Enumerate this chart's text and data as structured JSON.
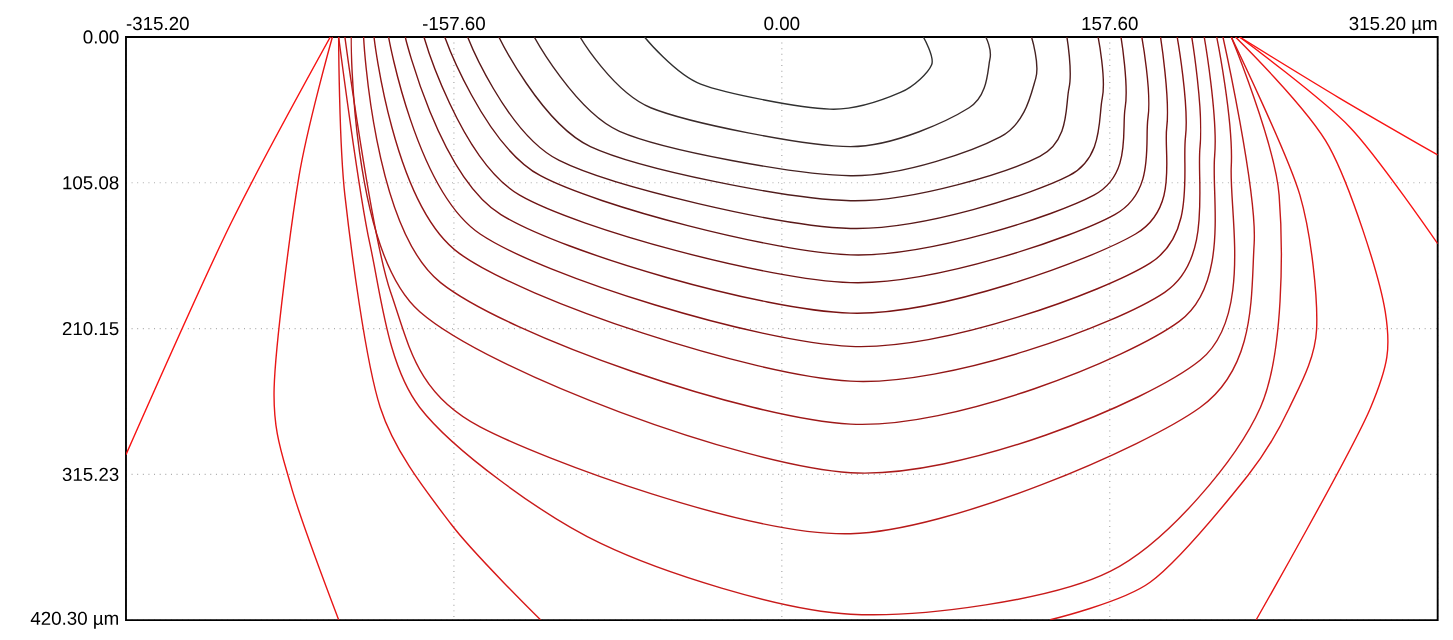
{
  "chart_data": {
    "type": "line",
    "xlim": [
      -315.2,
      315.2
    ],
    "ylim": [
      420.3,
      0
    ],
    "xticks": [
      {
        "value": -315.2,
        "label": "-315.20"
      },
      {
        "value": -157.6,
        "label": "-157.60"
      },
      {
        "value": 0,
        "label": "0.00"
      },
      {
        "value": 157.6,
        "label": "157.60"
      },
      {
        "value": 315.2,
        "label": "315.20 µm"
      }
    ],
    "yticks": [
      {
        "value": 0,
        "label": "0.00"
      },
      {
        "value": 105.08,
        "label": "105.08"
      },
      {
        "value": 210.15,
        "label": "210.15"
      },
      {
        "value": 315.23,
        "label": "315.23"
      },
      {
        "value": 420.3,
        "label": "420.30 µm"
      }
    ],
    "grid": true,
    "marker": "none",
    "line_style": "solid",
    "series": [
      {
        "color": "#303030",
        "x": [
          -66,
          -39,
          23,
          57,
          72,
          68
        ],
        "values": [
          0,
          34,
          52,
          40,
          20,
          0
        ]
      },
      {
        "color": "#3a2a2a",
        "x": [
          -97,
          -63,
          33,
          90,
          100,
          98
        ],
        "values": [
          0,
          51,
          79,
          51,
          16,
          0
        ]
      },
      {
        "color": "#452222",
        "x": [
          -119,
          -78,
          33,
          105,
          122,
          120
        ],
        "values": [
          0,
          68,
          100,
          72,
          30,
          0
        ]
      },
      {
        "color": "#501c1c",
        "x": [
          -136,
          -92,
          33,
          124,
          138,
          137
        ],
        "values": [
          0,
          79,
          118,
          86,
          37,
          0
        ]
      },
      {
        "color": "#5a1818",
        "x": [
          -151,
          -107,
          33,
          138,
          154,
          152
        ],
        "values": [
          0,
          89,
          138,
          100,
          44,
          0
        ]
      },
      {
        "color": "#661515",
        "x": [
          -162,
          -116,
          33,
          150,
          165,
          163
        ],
        "values": [
          0,
          100,
          157,
          114,
          51,
          0
        ]
      },
      {
        "color": "#701414",
        "x": [
          -172,
          -126,
          33,
          160,
          176,
          173
        ],
        "values": [
          0,
          114,
          177,
          128,
          58,
          0
        ]
      },
      {
        "color": "#7a1414",
        "x": [
          -181,
          -135,
          33,
          170,
          185,
          182
        ],
        "values": [
          0,
          128,
          199,
          142,
          65,
          0
        ]
      },
      {
        "color": "#861414",
        "x": [
          -189,
          -145,
          33,
          177,
          194,
          190
        ],
        "values": [
          0,
          142,
          223,
          163,
          72,
          0
        ]
      },
      {
        "color": "#921616",
        "x": [
          -196,
          -155,
          33,
          184,
          201,
          197
        ],
        "values": [
          0,
          156,
          248,
          184,
          79,
          0
        ]
      },
      {
        "color": "#9e1818",
        "x": [
          -201,
          -164,
          33,
          191,
          208,
          203
        ],
        "values": [
          0,
          177,
          279,
          205,
          86,
          0
        ]
      },
      {
        "color": "#aa1a1a",
        "x": [
          -207,
          -174,
          33,
          201,
          216,
          209
        ],
        "values": [
          0,
          198,
          314,
          233,
          93,
          0
        ]
      },
      {
        "color": "#b81a1a",
        "x": [
          -210,
          -188,
          -145,
          33,
          201,
          227,
          212
        ],
        "values": [
          0,
          184,
          281,
          358,
          267,
          149,
          0
        ]
      },
      {
        "color": "#c81a1a",
        "x": [
          -213,
          -198,
          -174,
          -87,
          33,
          158,
          230,
          239,
          216
        ],
        "values": [
          0,
          149,
          267,
          365,
          416,
          385,
          267,
          114,
          0
        ]
      },
      {
        "color": "#d81818",
        "x": [
          -213,
          -210,
          -193,
          -159,
          -116
        ],
        "values": [
          0,
          114,
          267,
          351,
          420
        ]
      },
      {
        "color": "#d81818",
        "x": [
          216,
          249,
          257,
          244,
          224,
          177,
          129
        ],
        "values": [
          0,
          114,
          211,
          267,
          316,
          393,
          420
        ]
      },
      {
        "color": "#e81616",
        "x": [
          -216,
          -232,
          -244,
          -236,
          -213
        ],
        "values": [
          0,
          100,
          253,
          323,
          420
        ]
      },
      {
        "color": "#e81616",
        "x": [
          218,
          263,
          290,
          283,
          228
        ],
        "values": [
          0,
          79,
          198,
          267,
          420
        ]
      },
      {
        "color": "#f81414",
        "x": [
          -217,
          -265,
          -315.2
        ],
        "values": [
          0,
          135,
          301
        ]
      },
      {
        "color": "#f81414",
        "x": [
          220,
          268,
          315.2
        ],
        "values": [
          0,
          44,
          85
        ]
      },
      {
        "color": "#f81414",
        "x": [
          220,
          273,
          315.2
        ],
        "values": [
          0,
          65,
          149
        ]
      }
    ]
  }
}
